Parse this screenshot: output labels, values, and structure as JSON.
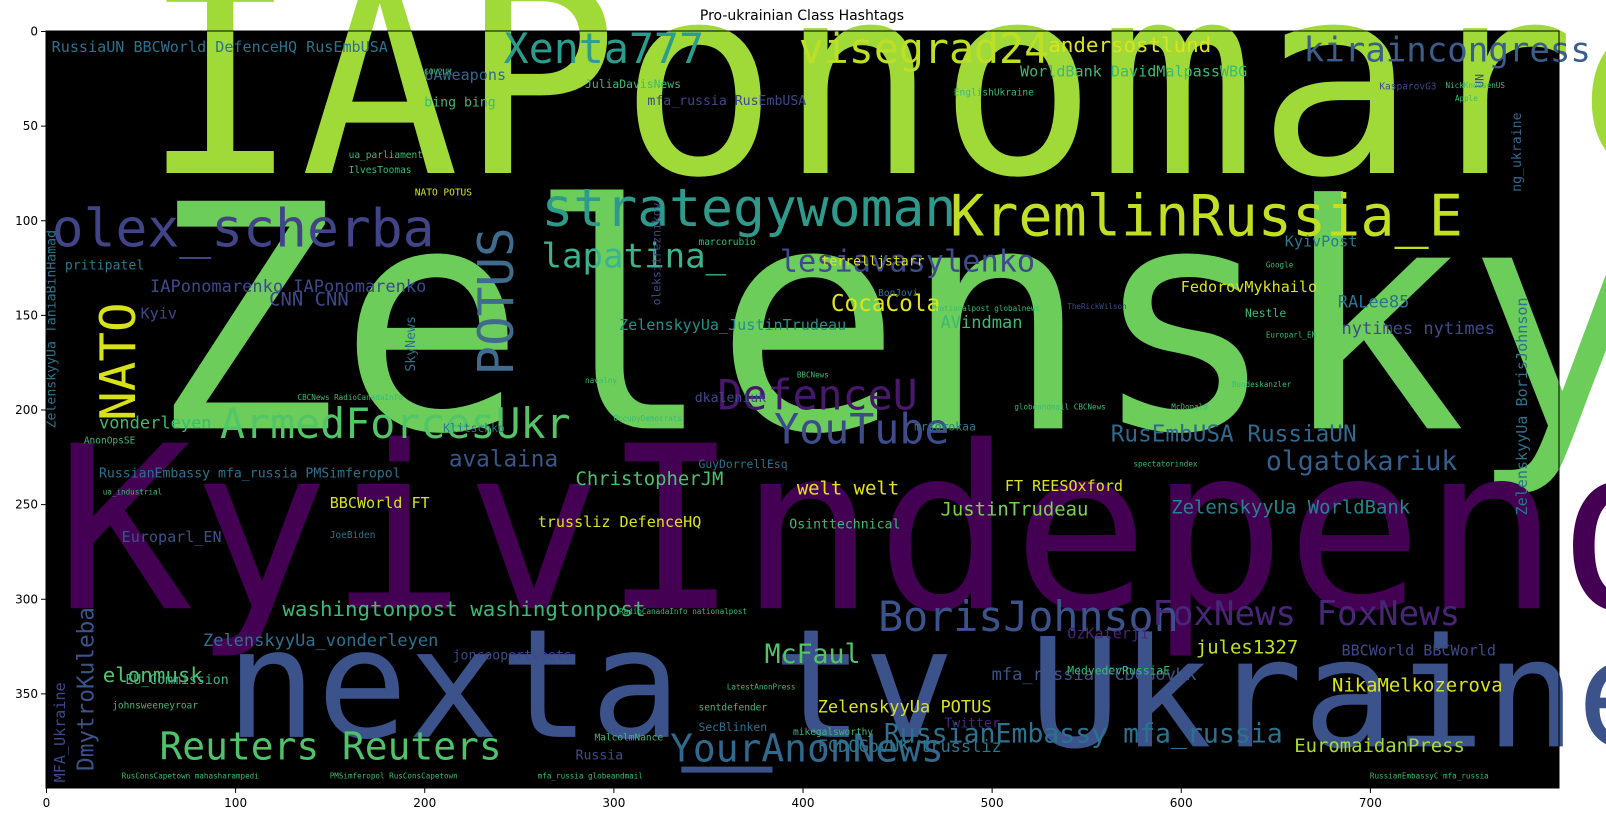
{
  "title": "Pro-ukrainian Class Hashtags",
  "axes": {
    "x_ticks": [
      0,
      100,
      200,
      300,
      400,
      500,
      600,
      700
    ],
    "y_ticks": [
      0,
      50,
      100,
      150,
      200,
      250,
      300,
      350
    ],
    "x_range": [
      0,
      800
    ],
    "y_range": [
      0,
      400
    ],
    "y_inverted": true
  },
  "colors": {
    "background": "#000000",
    "palette": "viridis"
  },
  "words": [
    {
      "text": "IAPonomarenko",
      "color": "#a0da39",
      "size": 140,
      "ix": 50,
      "iy": 75,
      "rot": 0
    },
    {
      "text": "ZelenskyyUa",
      "color": "#6ccd5a",
      "size": 165,
      "ix": 55,
      "iy": 210,
      "rot": 0
    },
    {
      "text": "KyivIndependent",
      "color": "#440154",
      "size": 120,
      "ix": 5,
      "iy": 305,
      "rot": 0
    },
    {
      "text": "nexta_tv",
      "color": "#3b528b",
      "size": 80,
      "ix": 95,
      "iy": 373,
      "rot": 0
    },
    {
      "text": "Ukraine",
      "color": "#3b528b",
      "size": 80,
      "ix": 520,
      "iy": 378,
      "rot": 0
    },
    {
      "text": "Xenta777",
      "color": "#2a9d8f",
      "size": 22,
      "ix": 242,
      "iy": 17,
      "rot": 0
    },
    {
      "text": "visegrad24",
      "color": "#bddf26",
      "size": 22,
      "ix": 398,
      "iy": 17,
      "rot": 0
    },
    {
      "text": "kiraincongress",
      "color": "#3b5d8b",
      "size": 18,
      "ix": 665,
      "iy": 16,
      "rot": 0
    },
    {
      "text": "andersostlund",
      "color": "#dce319",
      "size": 11,
      "ix": 530,
      "iy": 11,
      "rot": 0
    },
    {
      "text": "olex_scherba",
      "color": "#414487",
      "size": 28,
      "ix": 3,
      "iy": 114,
      "rot": 0
    },
    {
      "text": "strategywoman",
      "color": "#2d9a8c",
      "size": 28,
      "ix": 262,
      "iy": 103,
      "rot": 0
    },
    {
      "text": "KremlinRussia_E",
      "color": "#c2df23",
      "size": 30,
      "ix": 478,
      "iy": 108,
      "rot": 0
    },
    {
      "text": "NATO",
      "color": "#d8e219",
      "size": 26,
      "ix": 47,
      "iy": 206,
      "rot": -90
    },
    {
      "text": "POTUS",
      "color": "#3f6c8d",
      "size": 26,
      "ix": 247,
      "iy": 182,
      "rot": -90
    },
    {
      "text": "lapatina_",
      "color": "#39b48e",
      "size": 18,
      "ix": 262,
      "iy": 125,
      "rot": 0
    },
    {
      "text": "lesiavasylenko",
      "color": "#3e4a89",
      "size": 16,
      "ix": 388,
      "iy": 127,
      "rot": 0
    },
    {
      "text": "ArmedForcesUkr",
      "color": "#52c569",
      "size": 22,
      "ix": 92,
      "iy": 215,
      "rot": 0
    },
    {
      "text": "YouTube",
      "color": "#3e4c8a",
      "size": 22,
      "ix": 385,
      "iy": 218,
      "rot": 0
    },
    {
      "text": "DefenceU",
      "color": "#48186a",
      "size": 22,
      "ix": 355,
      "iy": 200,
      "rot": 0
    },
    {
      "text": "BorisJohnson",
      "color": "#3b528b",
      "size": 22,
      "ix": 440,
      "iy": 317,
      "rot": 0
    },
    {
      "text": "FoxNews FoxNews",
      "color": "#482576",
      "size": 18,
      "ix": 585,
      "iy": 314,
      "rot": 0
    },
    {
      "text": "Reuters Reuters",
      "color": "#4ec36b",
      "size": 20,
      "ix": 60,
      "iy": 385,
      "rot": 0
    },
    {
      "text": "YourAnonNews",
      "color": "#31688e",
      "size": 20,
      "ix": 330,
      "iy": 386,
      "rot": 0
    },
    {
      "text": "washingtonpost washingtonpost",
      "color": "#3aba76",
      "size": 11,
      "ix": 125,
      "iy": 309,
      "rot": 0
    },
    {
      "text": "elonmusk",
      "color": "#50c46a",
      "size": 11,
      "ix": 30,
      "iy": 344,
      "rot": 0
    },
    {
      "text": "McFaul",
      "color": "#52c569",
      "size": 14,
      "ix": 380,
      "iy": 334,
      "rot": 0
    },
    {
      "text": "RusEmbUSA RussiaUN",
      "color": "#31688e",
      "size": 12,
      "ix": 563,
      "iy": 217,
      "rot": 0
    },
    {
      "text": "olgatokariuk",
      "color": "#355f8d",
      "size": 14,
      "ix": 645,
      "iy": 232,
      "rot": 0
    },
    {
      "text": "CocaCola",
      "color": "#dfe318",
      "size": 12,
      "ix": 415,
      "iy": 148,
      "rot": 0
    },
    {
      "text": "RussianEmbassy mfa_russia",
      "color": "#2c728e",
      "size": 14,
      "ix": 443,
      "iy": 376,
      "rot": 0
    },
    {
      "text": "DmytroKuleba",
      "color": "#3b528b",
      "size": 12,
      "ix": 25,
      "iy": 391,
      "rot": -90
    },
    {
      "text": "avalaina",
      "color": "#39568c",
      "size": 12,
      "ix": 213,
      "iy": 230,
      "rot": 0
    },
    {
      "text": "ChristopherJM",
      "color": "#4ac16d",
      "size": 10,
      "ix": 280,
      "iy": 240,
      "rot": 0
    },
    {
      "text": "CNN CNN",
      "color": "#3e4989",
      "size": 10,
      "ix": 118,
      "iy": 145,
      "rot": 0
    },
    {
      "text": "Kyiv",
      "color": "#3e4989",
      "size": 8,
      "ix": 50,
      "iy": 152,
      "rot": 0
    },
    {
      "text": "SkyNews",
      "color": "#2d708e",
      "size": 7,
      "ix": 195,
      "iy": 180,
      "rot": -90
    },
    {
      "text": "JustinTrudeau",
      "color": "#7ad151",
      "size": 10,
      "ix": 473,
      "iy": 256,
      "rot": 0
    },
    {
      "text": "ZelenskyyUa WorldBank",
      "color": "#25838e",
      "size": 10,
      "ix": 595,
      "iy": 255,
      "rot": 0
    },
    {
      "text": "EuromaidanPress",
      "color": "#a8db34",
      "size": 10,
      "ix": 660,
      "iy": 381,
      "rot": 0
    },
    {
      "text": "NikaMelkozerova",
      "color": "#dde318",
      "size": 10,
      "ix": 680,
      "iy": 349,
      "rot": 0
    },
    {
      "text": "BBCWorld BBCWorld",
      "color": "#3e4989",
      "size": 8,
      "ix": 685,
      "iy": 330,
      "rot": 0
    },
    {
      "text": "jules1327",
      "color": "#c5e021",
      "size": 10,
      "ix": 608,
      "iy": 329,
      "rot": 0
    },
    {
      "text": "mfa_russia FCDOGovUK",
      "color": "#3b528b",
      "size": 9,
      "ix": 500,
      "iy": 343,
      "rot": 0
    },
    {
      "text": "ZelenskyyUa POTUS",
      "color": "#dce319",
      "size": 9,
      "ix": 408,
      "iy": 360,
      "rot": 0
    },
    {
      "text": "FCDOGovUK trussliz",
      "color": "#2a788e",
      "size": 9,
      "ix": 408,
      "iy": 381,
      "rot": 0
    },
    {
      "text": "welt welt",
      "color": "#e5e419",
      "size": 10,
      "ix": 397,
      "iy": 245,
      "rot": 0
    },
    {
      "text": "FT REESOxford",
      "color": "#dde318",
      "size": 8,
      "ix": 507,
      "iy": 243,
      "rot": 0
    },
    {
      "text": "BBCWorld FT",
      "color": "#d8e219",
      "size": 8,
      "ix": 150,
      "iy": 252,
      "rot": 0
    },
    {
      "text": "trussliz DefenceHQ",
      "color": "#dde318",
      "size": 8,
      "ix": 260,
      "iy": 262,
      "rot": 0
    },
    {
      "text": "Europarl_EN",
      "color": "#3b528b",
      "size": 8,
      "ix": 40,
      "iy": 270,
      "rot": 0
    },
    {
      "text": "RussianEmbassy mfa_russia PMSimferopol",
      "color": "#2c728e",
      "size": 7,
      "ix": 28,
      "iy": 236,
      "rot": 0
    },
    {
      "text": "vonderleyen",
      "color": "#3aba76",
      "size": 9,
      "ix": 28,
      "iy": 210,
      "rot": 0
    },
    {
      "text": "ZelenskyyUa_vonderleyen",
      "color": "#2c728e",
      "size": 9,
      "ix": 83,
      "iy": 325,
      "rot": 0
    },
    {
      "text": "ZelenskyyUa_JustinTrudeau",
      "color": "#21918c",
      "size": 8,
      "ix": 303,
      "iy": 158,
      "rot": 0
    },
    {
      "text": "IAPonomarenko IAPonomarenko",
      "color": "#3e4989",
      "size": 9,
      "ix": 55,
      "iy": 138,
      "rot": 0
    },
    {
      "text": "pritipatel",
      "color": "#2a788e",
      "size": 7,
      "ix": 10,
      "iy": 126,
      "rot": 0
    },
    {
      "text": "terrelljstarr",
      "color": "#dfe318",
      "size": 7,
      "ix": 410,
      "iy": 124,
      "rot": 0
    },
    {
      "text": "FedorovMykhailo",
      "color": "#dde318",
      "size": 8,
      "ix": 600,
      "iy": 138,
      "rot": 0
    },
    {
      "text": "RALee85",
      "color": "#2c728e",
      "size": 9,
      "ix": 683,
      "iy": 146,
      "rot": 0
    },
    {
      "text": "nytimes nytimes",
      "color": "#3e4c8a",
      "size": 9,
      "ix": 685,
      "iy": 160,
      "rot": 0
    },
    {
      "text": "AVindman",
      "color": "#3aba76",
      "size": 9,
      "ix": 473,
      "iy": 157,
      "rot": 0
    },
    {
      "text": "WorldBank DavidMalpassWBG",
      "color": "#3aba76",
      "size": 8,
      "ix": 515,
      "iy": 24,
      "rot": 0
    },
    {
      "text": "RussiaUN BBCWorld DefenceHQ RusEmbUSA",
      "color": "#2c728e",
      "size": 8,
      "ix": 3,
      "iy": 11,
      "rot": 0
    },
    {
      "text": "UAWeapons",
      "color": "#31688e",
      "size": 8,
      "ix": 200,
      "iy": 26,
      "rot": 0
    },
    {
      "text": "bing bing",
      "color": "#3aba76",
      "size": 7,
      "ix": 200,
      "iy": 40,
      "rot": 0
    },
    {
      "text": "mfa_russia RusEmbUSA",
      "color": "#3e4989",
      "size": 7,
      "ix": 318,
      "iy": 39,
      "rot": 0
    },
    {
      "text": "KyivPost",
      "color": "#2a788e",
      "size": 8,
      "ix": 655,
      "iy": 114,
      "rot": 0
    },
    {
      "text": "ZelenskyyUa BorisJohnson",
      "color": "#2c728e",
      "size": 8,
      "ix": 783,
      "iy": 256,
      "rot": -90
    },
    {
      "text": "Osinttechnical",
      "color": "#3aba76",
      "size": 7,
      "ix": 393,
      "iy": 263,
      "rot": 0
    },
    {
      "text": "OzKaterji",
      "color": "#482576",
      "size": 8,
      "ix": 540,
      "iy": 321,
      "rot": 0
    },
    {
      "text": "joncoopertweets",
      "color": "#3e4989",
      "size": 7,
      "ix": 215,
      "iy": 332,
      "rot": 0
    },
    {
      "text": "EU_Commission",
      "color": "#39b48e",
      "size": 7,
      "ix": 42,
      "iy": 345,
      "rot": 0
    },
    {
      "text": "Twitter",
      "color": "#482576",
      "size": 7,
      "ix": 475,
      "iy": 368,
      "rot": 0
    },
    {
      "text": "SecBlinken",
      "color": "#2c728e",
      "size": 6,
      "ix": 345,
      "iy": 370,
      "rot": 0
    },
    {
      "text": "GuyDorrellEsq",
      "color": "#2c728e",
      "size": 6,
      "ix": 345,
      "iy": 231,
      "rot": 0
    },
    {
      "text": "mrsorokaa",
      "color": "#2a788e",
      "size": 6,
      "ix": 459,
      "iy": 211,
      "rot": 0
    },
    {
      "text": "MFA_Ukraine",
      "color": "#3e4989",
      "size": 8,
      "ix": 10,
      "iy": 397,
      "rot": -90
    },
    {
      "text": "ZelenskyyUa TaniaBinHamad",
      "color": "#2c728e",
      "size": 7,
      "ix": 5,
      "iy": 210,
      "rot": -90
    },
    {
      "text": "Russia",
      "color": "#3e4c8a",
      "size": 7,
      "ix": 280,
      "iy": 385,
      "rot": 0
    },
    {
      "text": "Klitschko",
      "color": "#2a788e",
      "size": 6,
      "ix": 210,
      "iy": 212,
      "rot": 0
    },
    {
      "text": "dkaleniuk",
      "color": "#3e4989",
      "size": 7,
      "ix": 343,
      "iy": 196,
      "rot": 0
    },
    {
      "text": "oleksiireznikov",
      "color": "#3e4989",
      "size": 6,
      "ix": 325,
      "iy": 145,
      "rot": -90
    },
    {
      "text": "Nestle",
      "color": "#3aba76",
      "size": 6,
      "ix": 634,
      "iy": 151,
      "rot": 0
    },
    {
      "text": "MedvedevRussiaE",
      "color": "#3aba76",
      "size": 6,
      "ix": 540,
      "iy": 340,
      "rot": 0
    },
    {
      "text": "JoeBiden",
      "color": "#2c728e",
      "size": 5,
      "ix": 150,
      "iy": 268,
      "rot": 0
    },
    {
      "text": "BonJovi",
      "color": "#2a788e",
      "size": 5,
      "ix": 440,
      "iy": 140,
      "rot": 0
    },
    {
      "text": "UN",
      "color": "#3e4989",
      "size": 6,
      "ix": 760,
      "iy": 30,
      "rot": -90
    },
    {
      "text": "ng_ukraine",
      "color": "#31688e",
      "size": 7,
      "ix": 780,
      "iy": 85,
      "rot": -90
    },
    {
      "text": "KasparovG3",
      "color": "#3e4989",
      "size": 5,
      "ix": 705,
      "iy": 31,
      "rot": 0
    },
    {
      "text": "JuliaDavisNews",
      "color": "#3aba76",
      "size": 6,
      "ix": 285,
      "iy": 30,
      "rot": 0
    },
    {
      "text": "EnglishUkraine",
      "color": "#3aba76",
      "size": 5,
      "ix": 480,
      "iy": 34,
      "rot": 0
    },
    {
      "text": "ua_parliament",
      "color": "#3aba76",
      "size": 5,
      "ix": 160,
      "iy": 67,
      "rot": 0
    },
    {
      "text": "IlvesToomas",
      "color": "#3aba76",
      "size": 5,
      "ix": 160,
      "iy": 75,
      "rot": 0
    },
    {
      "text": "NATO POTUS",
      "color": "#dde318",
      "size": 5,
      "ix": 195,
      "iy": 87,
      "rot": 0
    },
    {
      "text": "marcorubio",
      "color": "#3aba76",
      "size": 5,
      "ix": 345,
      "iy": 113,
      "rot": 0
    },
    {
      "text": "nationalpost globalnews",
      "color": "#3aba76",
      "size": 4,
      "ix": 470,
      "iy": 148,
      "rot": 0
    },
    {
      "text": "TheRickWilson",
      "color": "#3e4989",
      "size": 4,
      "ix": 540,
      "iy": 147,
      "rot": 0
    },
    {
      "text": "globeandmail CBCNews",
      "color": "#3aba76",
      "size": 4,
      "ix": 512,
      "iy": 200,
      "rot": 0
    },
    {
      "text": "McDonald",
      "color": "#3aba76",
      "size": 4,
      "ix": 595,
      "iy": 200,
      "rot": 0
    },
    {
      "text": "spectatorindex",
      "color": "#3aba76",
      "size": 4,
      "ix": 575,
      "iy": 230,
      "rot": 0
    },
    {
      "text": "Bundeskanzler",
      "color": "#3aba76",
      "size": 4,
      "ix": 627,
      "iy": 188,
      "rot": 0
    },
    {
      "text": "Europarl_EN",
      "color": "#3aba76",
      "size": 4,
      "ix": 645,
      "iy": 162,
      "rot": 0
    },
    {
      "text": "OccupyDemocrats",
      "color": "#3aba76",
      "size": 4,
      "ix": 300,
      "iy": 206,
      "rot": 0
    },
    {
      "text": "navalny",
      "color": "#3aba76",
      "size": 4,
      "ix": 285,
      "iy": 186,
      "rot": 0
    },
    {
      "text": "BBCNews",
      "color": "#3aba76",
      "size": 4,
      "ix": 397,
      "iy": 183,
      "rot": 0
    },
    {
      "text": "CBCNews RadioCanadaInfo",
      "color": "#3aba76",
      "size": 4,
      "ix": 133,
      "iy": 195,
      "rot": 0
    },
    {
      "text": "LatestAnonPress",
      "color": "#3aba76",
      "size": 4,
      "ix": 360,
      "iy": 348,
      "rot": 0
    },
    {
      "text": "sentdefender",
      "color": "#3aba76",
      "size": 5,
      "ix": 345,
      "iy": 359,
      "rot": 0
    },
    {
      "text": "mikegalsworthy",
      "color": "#3aba76",
      "size": 5,
      "ix": 395,
      "iy": 372,
      "rot": 0
    },
    {
      "text": "MalcolmNance",
      "color": "#3aba76",
      "size": 5,
      "ix": 290,
      "iy": 375,
      "rot": 0
    },
    {
      "text": "johnsweeneyroar",
      "color": "#3aba76",
      "size": 5,
      "ix": 35,
      "iy": 358,
      "rot": 0
    },
    {
      "text": "RusConsCapetown mahasharampedi",
      "color": "#3aba76",
      "size": 4,
      "ix": 40,
      "iy": 395,
      "rot": 0
    },
    {
      "text": "PMSimferopol RusConsCapetown",
      "color": "#3aba76",
      "size": 4,
      "ix": 150,
      "iy": 395,
      "rot": 0
    },
    {
      "text": "mfa_russia globeandmail",
      "color": "#3aba76",
      "size": 4,
      "ix": 260,
      "iy": 395,
      "rot": 0
    },
    {
      "text": "RussianEmbassyC mfa_russia",
      "color": "#3aba76",
      "size": 4,
      "ix": 700,
      "iy": 395,
      "rot": 0
    },
    {
      "text": "ua_industrial",
      "color": "#3aba76",
      "size": 4,
      "ix": 30,
      "iy": 245,
      "rot": 0
    },
    {
      "text": "AnonOpsSE",
      "color": "#3aba76",
      "size": 5,
      "ix": 20,
      "iy": 218,
      "rot": 0
    },
    {
      "text": "RadioCanadaInfo nationalpost",
      "color": "#3aba76",
      "size": 4,
      "ix": 303,
      "iy": 308,
      "rot": 0
    },
    {
      "text": "GOV2UK",
      "color": "#3aba76",
      "size": 4,
      "ix": 200,
      "iy": 23,
      "rot": 0
    },
    {
      "text": "Apple",
      "color": "#3aba76",
      "size": 4,
      "ix": 745,
      "iy": 37,
      "rot": 0
    },
    {
      "text": "NickKnudsenUS",
      "color": "#3aba76",
      "size": 4,
      "ix": 740,
      "iy": 30,
      "rot": 0
    },
    {
      "text": "Google",
      "color": "#3aba76",
      "size": 4,
      "ix": 645,
      "iy": 125,
      "rot": 0
    }
  ]
}
